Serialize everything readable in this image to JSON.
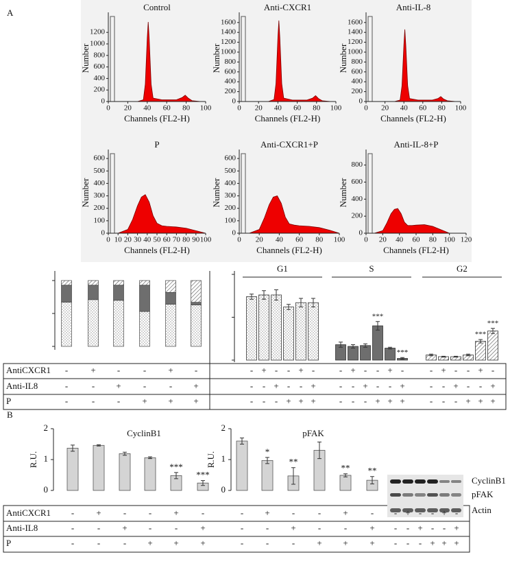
{
  "panel_labels": [
    "A",
    "B"
  ],
  "chart_data": [
    {
      "type": "flow",
      "title": "Control",
      "xlabel": "Channels (FL2-H)",
      "ylabel": "Number",
      "color": "#ee0000",
      "x": [
        0,
        30,
        36,
        38,
        40,
        41,
        42,
        44,
        46,
        55,
        70,
        76,
        79,
        82,
        86,
        95,
        100
      ],
      "values": [
        0,
        0,
        30,
        300,
        1100,
        1380,
        1100,
        300,
        60,
        30,
        30,
        70,
        110,
        60,
        15,
        0,
        0
      ],
      "xlim": [
        0,
        100
      ],
      "xticks": [
        0,
        20,
        40,
        60,
        80,
        100
      ],
      "ylim": [
        0,
        1500
      ],
      "yticks": [
        0,
        200,
        400,
        600,
        800,
        1000,
        1200
      ]
    },
    {
      "type": "flow",
      "title": "Anti-CXCR1",
      "xlabel": "Channels (FL2-H)",
      "ylabel": "Number",
      "color": "#ee0000",
      "x": [
        0,
        30,
        36,
        38,
        40,
        41,
        42,
        44,
        46,
        55,
        70,
        76,
        79,
        82,
        86,
        95,
        100
      ],
      "values": [
        0,
        0,
        40,
        360,
        1300,
        1640,
        1300,
        360,
        70,
        30,
        30,
        70,
        120,
        60,
        15,
        0,
        0
      ],
      "xlim": [
        0,
        100
      ],
      "xticks": [
        0,
        20,
        40,
        60,
        80,
        100
      ],
      "ylim": [
        0,
        1750
      ],
      "yticks": [
        0,
        200,
        400,
        600,
        800,
        1000,
        1200,
        1400,
        1600
      ]
    },
    {
      "type": "flow",
      "title": "Anti-IL-8",
      "xlabel": "Channels (FL2-H)",
      "ylabel": "Number",
      "color": "#ee0000",
      "x": [
        0,
        30,
        36,
        38,
        40,
        41,
        42,
        44,
        46,
        55,
        70,
        76,
        79,
        82,
        86,
        95,
        100
      ],
      "values": [
        0,
        0,
        30,
        320,
        1150,
        1460,
        1150,
        320,
        60,
        30,
        30,
        60,
        100,
        50,
        15,
        0,
        0
      ],
      "xlim": [
        0,
        100
      ],
      "xticks": [
        0,
        20,
        40,
        60,
        80,
        100
      ],
      "ylim": [
        0,
        1750
      ],
      "yticks": [
        0,
        200,
        400,
        600,
        800,
        1000,
        1200,
        1400,
        1600
      ]
    },
    {
      "type": "flow",
      "title": "P",
      "xlabel": "Channels (FL2-H)",
      "ylabel": "Number",
      "color": "#ee0000",
      "x": [
        10,
        20,
        25,
        30,
        34,
        38,
        42,
        46,
        50,
        55,
        60,
        70,
        80,
        90,
        100
      ],
      "values": [
        0,
        30,
        110,
        220,
        290,
        310,
        250,
        140,
        80,
        60,
        55,
        50,
        40,
        20,
        0
      ],
      "xlim": [
        0,
        100
      ],
      "xticks": [
        0,
        10,
        20,
        30,
        40,
        50,
        60,
        70,
        80,
        90,
        100
      ],
      "ylim": [
        0,
        650
      ],
      "yticks": [
        0,
        100,
        200,
        300,
        400,
        500,
        600
      ]
    },
    {
      "type": "flow",
      "title": "Anti-CXCR1+P",
      "xlabel": "Channels (FL2-H)",
      "ylabel": "Number",
      "color": "#ee0000",
      "x": [
        10,
        20,
        25,
        30,
        34,
        38,
        42,
        46,
        50,
        55,
        60,
        70,
        80,
        90,
        100
      ],
      "values": [
        0,
        30,
        120,
        230,
        290,
        300,
        240,
        130,
        75,
        65,
        60,
        55,
        45,
        25,
        0
      ],
      "xlim": [
        0,
        100
      ],
      "xticks": [
        0,
        20,
        40,
        60,
        80,
        100
      ],
      "ylim": [
        0,
        650
      ],
      "yticks": [
        0,
        100,
        200,
        300,
        400,
        500,
        600
      ]
    },
    {
      "type": "flow",
      "title": "Anti-IL-8+P",
      "xlabel": "Channels (FL2-H)",
      "ylabel": "Number",
      "color": "#ee0000",
      "x": [
        10,
        20,
        25,
        30,
        34,
        38,
        42,
        46,
        50,
        55,
        60,
        70,
        80,
        90,
        100
      ],
      "values": [
        0,
        30,
        120,
        230,
        280,
        290,
        230,
        130,
        90,
        90,
        95,
        100,
        80,
        40,
        0
      ],
      "xlim": [
        0,
        120
      ],
      "xticks": [
        0,
        20,
        40,
        60,
        80,
        100,
        120
      ],
      "ylim": [
        0,
        950
      ],
      "yticks": [
        0,
        200,
        400,
        600,
        800
      ]
    },
    {
      "type": "stacked_bar",
      "ylim": [
        0,
        100
      ],
      "yticks": [
        0,
        50,
        100
      ],
      "series": [
        {
          "name": "G1",
          "color": "#ffffff",
          "pattern": "dots",
          "values": [
            67,
            71,
            70,
            53,
            64,
            63
          ]
        },
        {
          "name": "S",
          "color": "#6e6e6e",
          "pattern": "solid",
          "values": [
            26,
            22,
            23,
            40,
            18,
            4
          ]
        },
        {
          "name": "G2",
          "color": "#ffffff",
          "pattern": "hatch",
          "values": [
            7,
            7,
            7,
            7,
            18,
            33
          ]
        }
      ]
    },
    {
      "type": "grouped_bar",
      "ylim": [
        0,
        100
      ],
      "yticks": [
        0,
        50,
        100
      ],
      "series": [
        {
          "name": "G1",
          "color": "#ffffff",
          "pattern": "dots",
          "values": [
            74,
            76,
            76,
            62,
            67,
            67
          ],
          "errors": [
            3,
            5,
            6,
            3,
            5,
            5
          ]
        },
        {
          "name": "S",
          "color": "#6e6e6e",
          "pattern": "solid",
          "values": [
            18,
            16,
            17,
            40,
            14,
            2
          ],
          "errors": [
            3,
            2,
            2,
            5,
            1,
            1
          ],
          "significance": [
            null,
            null,
            null,
            "***",
            null,
            "***"
          ]
        },
        {
          "name": "G2",
          "color": "#ffffff",
          "pattern": "hatch",
          "values": [
            6,
            4,
            4,
            6,
            22,
            34
          ],
          "errors": [
            1,
            0.5,
            0.5,
            1,
            2,
            3
          ],
          "significance": [
            null,
            null,
            null,
            null,
            "***",
            "***"
          ]
        }
      ]
    },
    {
      "type": "bar",
      "title": "CyclinB1",
      "ylabel": "R.U.",
      "color": "#d4d4d4",
      "values": [
        1.37,
        1.46,
        1.19,
        1.06,
        0.48,
        0.24
      ],
      "errors": [
        0.1,
        0.02,
        0.05,
        0.03,
        0.1,
        0.08
      ],
      "significance": [
        null,
        null,
        null,
        null,
        "***",
        "***"
      ],
      "ylim": [
        0,
        2
      ],
      "yticks": [
        0,
        1,
        2
      ]
    },
    {
      "type": "bar",
      "title": "pFAK",
      "ylabel": "R.U.",
      "color": "#d4d4d4",
      "values": [
        1.6,
        0.97,
        0.47,
        1.3,
        0.49,
        0.33
      ],
      "errors": [
        0.1,
        0.1,
        0.27,
        0.27,
        0.05,
        0.12
      ],
      "significance": [
        null,
        "*",
        "**",
        null,
        "**",
        "**"
      ],
      "ylim": [
        0,
        2
      ],
      "yticks": [
        0,
        1,
        2
      ]
    }
  ],
  "conditions": {
    "rows": [
      "AntiCXCR1",
      "Anti-IL8",
      "P"
    ],
    "signs": [
      [
        "-",
        "+",
        "-",
        "-",
        "+",
        "-"
      ],
      [
        "-",
        "-",
        "+",
        "-",
        "-",
        "+"
      ],
      [
        "-",
        "-",
        "-",
        "+",
        "+",
        "+"
      ]
    ]
  },
  "blot": {
    "labels": [
      "CyclinB1",
      "pFAK",
      "Actin"
    ]
  }
}
